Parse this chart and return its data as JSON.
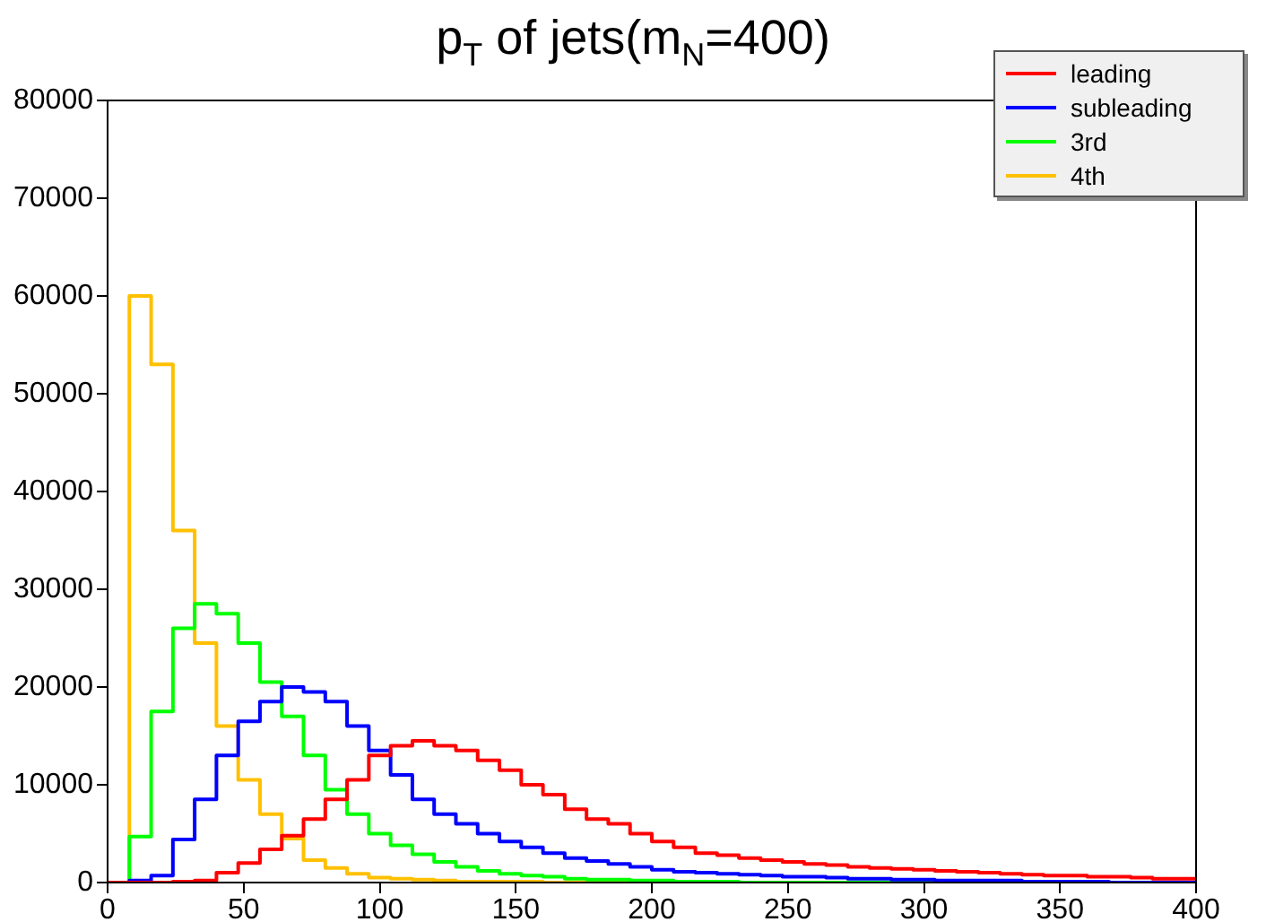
{
  "chart_data": {
    "type": "histogram",
    "title": "p$_{T}$ of jets(m$_{N}$=400)",
    "bins": [
      0,
      8,
      16,
      24,
      32,
      40,
      48,
      56,
      64,
      72,
      80,
      88,
      96,
      104,
      112,
      120,
      128,
      136,
      144,
      152,
      160,
      168,
      176,
      184,
      192,
      200,
      208,
      216,
      224,
      232,
      240,
      248,
      256,
      264,
      272,
      280,
      288,
      296,
      304,
      312,
      320,
      328,
      336,
      344,
      352,
      360,
      368,
      376,
      384,
      392,
      400
    ],
    "series": [
      {
        "name": "leading",
        "color": "#ff0000",
        "values": [
          0,
          0,
          0,
          100,
          200,
          1000,
          2000,
          3400,
          4800,
          6500,
          8500,
          10500,
          13000,
          14000,
          14500,
          14000,
          13500,
          12500,
          11500,
          10000,
          9000,
          7500,
          6500,
          6000,
          5000,
          4200,
          3600,
          3000,
          2800,
          2500,
          2300,
          2100,
          1900,
          1800,
          1600,
          1500,
          1400,
          1300,
          1200,
          1100,
          1000,
          900,
          800,
          700,
          700,
          600,
          600,
          500,
          400,
          400
        ]
      },
      {
        "name": "subleading",
        "color": "#0000ff",
        "values": [
          0,
          200,
          700,
          4400,
          8500,
          13000,
          16500,
          18500,
          20000,
          19500,
          18500,
          16000,
          13500,
          11000,
          8500,
          7000,
          6000,
          5000,
          4200,
          3600,
          3000,
          2500,
          2200,
          1900,
          1600,
          1300,
          1100,
          1000,
          900,
          800,
          700,
          600,
          600,
          500,
          400,
          400,
          300,
          300,
          200,
          200,
          200,
          200,
          100,
          100,
          100,
          100,
          0,
          0,
          0,
          0
        ]
      },
      {
        "name": "3rd",
        "color": "#00ff00",
        "values": [
          0,
          4700,
          17500,
          26000,
          28500,
          27500,
          24500,
          20500,
          17000,
          13000,
          9500,
          7000,
          5000,
          3800,
          2900,
          2100,
          1600,
          1200,
          900,
          700,
          600,
          400,
          300,
          300,
          200,
          200,
          100,
          100,
          100,
          0,
          0,
          0,
          0,
          0,
          0,
          0,
          0,
          0,
          0,
          0,
          0,
          0,
          0,
          0,
          0,
          0,
          0,
          0,
          0,
          0
        ]
      },
      {
        "name": "4th",
        "color": "#ffc000",
        "values": [
          0,
          60000,
          53000,
          36000,
          24500,
          16000,
          10500,
          7000,
          4500,
          2300,
          1500,
          900,
          500,
          400,
          300,
          200,
          100,
          100,
          100,
          100,
          0,
          0,
          0,
          0,
          0,
          0,
          0,
          0,
          0,
          0,
          0,
          0,
          0,
          0,
          0,
          0,
          0,
          0,
          0,
          0,
          0,
          0,
          0,
          0,
          0,
          0,
          0,
          0,
          0,
          0
        ]
      }
    ],
    "xlim": [
      0,
      400
    ],
    "xticks": [
      0,
      50,
      100,
      150,
      200,
      250,
      300,
      350,
      400
    ],
    "ylim": [
      0,
      80000
    ],
    "yticks": [
      0,
      10000,
      20000,
      30000,
      40000,
      50000,
      60000,
      70000,
      80000
    ],
    "grid": false,
    "legend": "top right"
  }
}
